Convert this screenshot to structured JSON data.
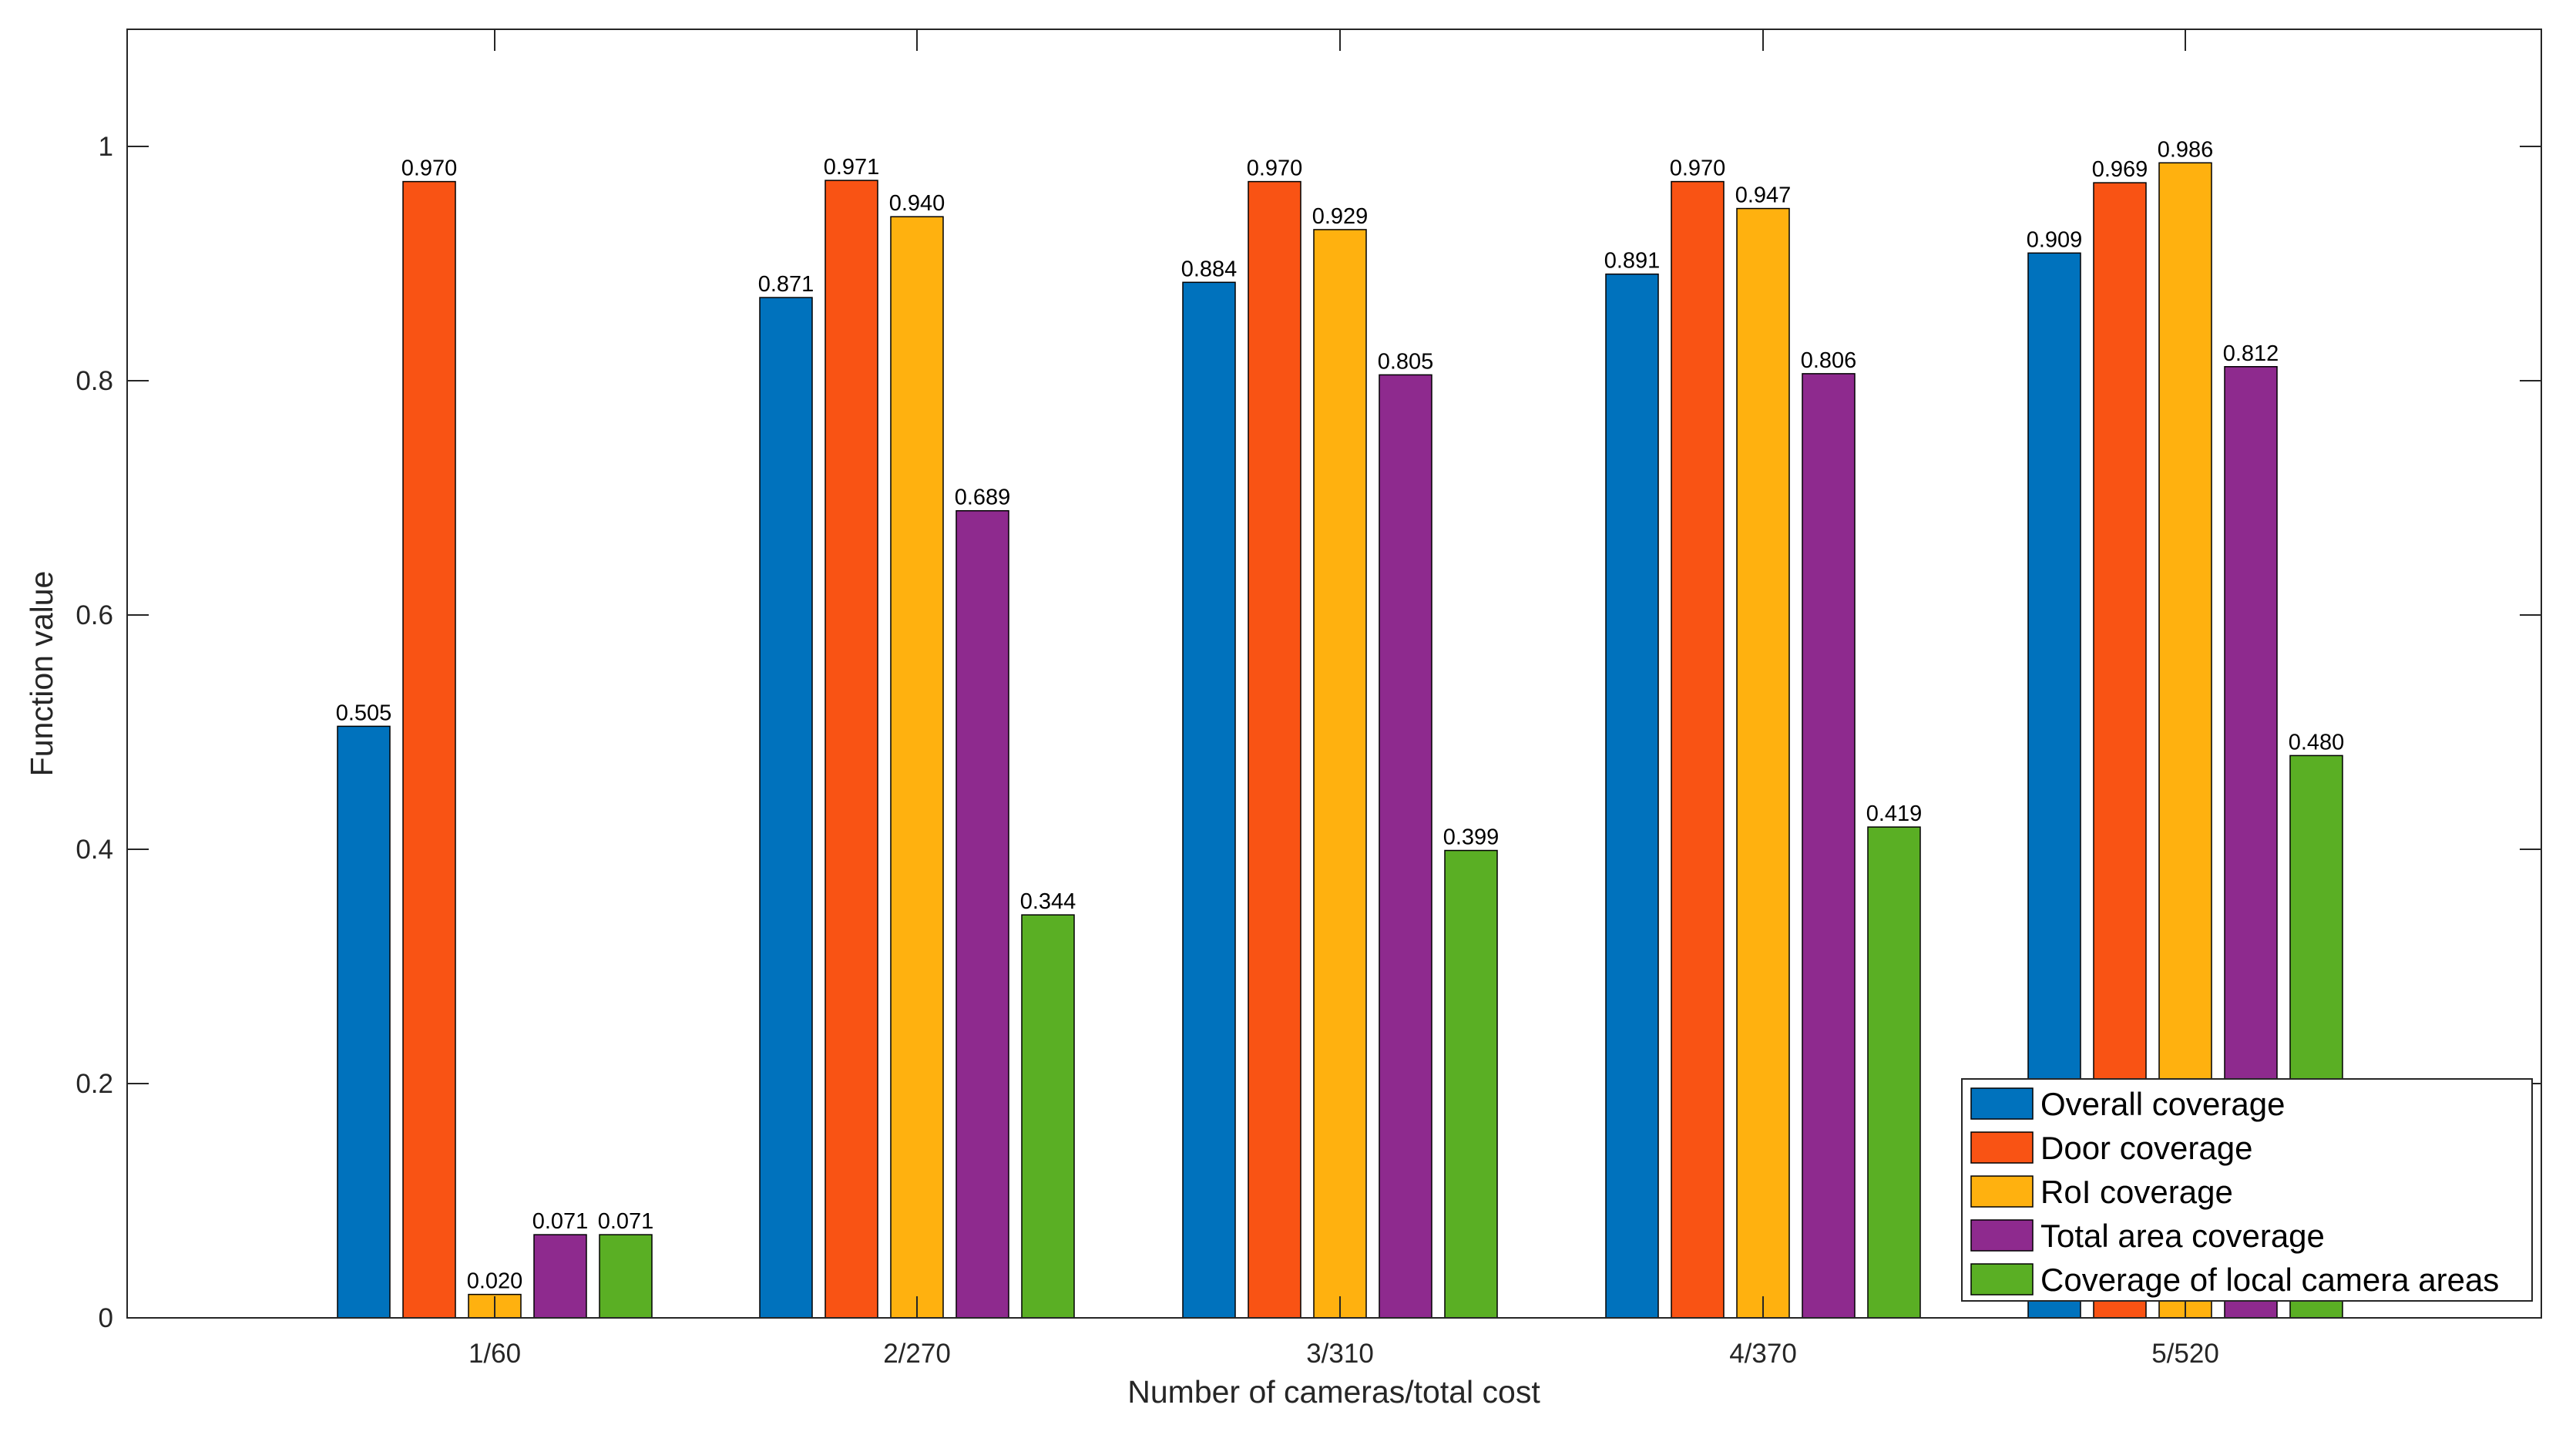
{
  "chart_data": {
    "type": "bar",
    "title": "",
    "xlabel": "Number of cameras/total cost",
    "ylabel": "Function value",
    "ylim": [
      0,
      1.1
    ],
    "yticks": [
      0,
      0.2,
      0.4,
      0.6,
      0.8,
      1
    ],
    "ytick_labels": [
      "0",
      "0.2",
      "0.4",
      "0.6",
      "0.8",
      "1"
    ],
    "grid": false,
    "legend_position": "bottom-right",
    "categories": [
      "1/60",
      "2/270",
      "3/310",
      "4/370",
      "5/520"
    ],
    "series": [
      {
        "name": "Overall coverage",
        "color": "#0072BD",
        "values": [
          0.505,
          0.871,
          0.884,
          0.891,
          0.909
        ],
        "labels": [
          "0.505",
          "0.871",
          "0.884",
          "0.891",
          "0.909"
        ]
      },
      {
        "name": "Door coverage",
        "color": "#F95314",
        "values": [
          0.97,
          0.971,
          0.97,
          0.97,
          0.969
        ],
        "labels": [
          "0.970",
          "0.971",
          "0.970",
          "0.970",
          "0.969"
        ]
      },
      {
        "name": "RoI coverage",
        "color": "#FFB10F",
        "values": [
          0.02,
          0.94,
          0.929,
          0.947,
          0.986
        ],
        "labels": [
          "0.020",
          "0.940",
          "0.929",
          "0.947",
          "0.986"
        ]
      },
      {
        "name": "Total area coverage",
        "color": "#8E2A8E",
        "values": [
          0.071,
          0.689,
          0.805,
          0.806,
          0.812
        ],
        "labels": [
          "0.071",
          "0.689",
          "0.805",
          "0.806",
          "0.812"
        ]
      },
      {
        "name": "Coverage of local camera areas",
        "color": "#5AAF24",
        "values": [
          0.071,
          0.344,
          0.399,
          0.419,
          0.48
        ],
        "labels": [
          "0.071",
          "0.344",
          "0.399",
          "0.419",
          "0.480"
        ]
      }
    ]
  }
}
